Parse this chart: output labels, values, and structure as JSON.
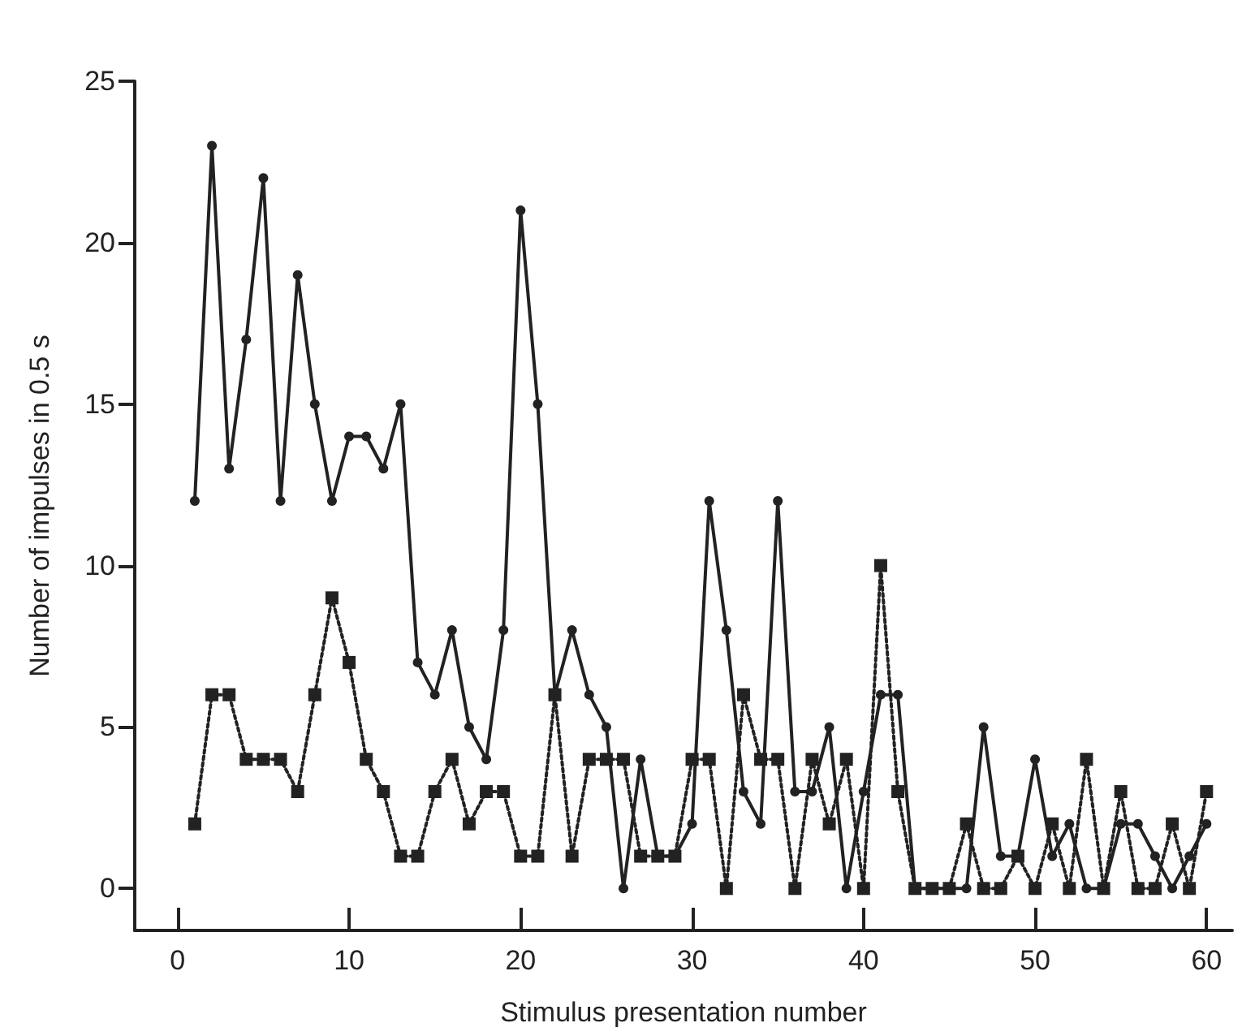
{
  "chart_data": {
    "type": "line",
    "xlabel": "Stimulus presentation number",
    "ylabel": "Number of impulses in 0.5 s",
    "x": [
      1,
      2,
      3,
      4,
      5,
      6,
      7,
      8,
      9,
      10,
      11,
      12,
      13,
      14,
      15,
      16,
      17,
      18,
      19,
      20,
      21,
      22,
      23,
      24,
      25,
      26,
      27,
      28,
      29,
      30,
      31,
      32,
      33,
      34,
      35,
      36,
      37,
      38,
      39,
      40,
      41,
      42,
      43,
      44,
      45,
      46,
      47,
      48,
      49,
      50,
      51,
      52,
      53,
      54,
      55,
      56,
      57,
      58,
      59,
      60
    ],
    "series": [
      {
        "color": "#222222",
        "marker": "circle",
        "line_style": "solid",
        "values": [
          12,
          23,
          13,
          17,
          22,
          12,
          19,
          15,
          12,
          14,
          14,
          13,
          15,
          7,
          6,
          8,
          5,
          4,
          8,
          21,
          15,
          6,
          8,
          6,
          5,
          0,
          4,
          1,
          1,
          2,
          12,
          8,
          3,
          2,
          12,
          3,
          3,
          5,
          0,
          3,
          6,
          6,
          0,
          0,
          0,
          0,
          5,
          1,
          1,
          4,
          1,
          2,
          0,
          0,
          2,
          2,
          1,
          0,
          1,
          2
        ]
      },
      {
        "color": "#222222",
        "marker": "square",
        "line_style": "dotted",
        "values": [
          2,
          6,
          6,
          4,
          4,
          4,
          3,
          6,
          9,
          7,
          4,
          3,
          1,
          1,
          3,
          4,
          2,
          3,
          3,
          1,
          1,
          6,
          1,
          4,
          4,
          4,
          1,
          1,
          1,
          4,
          4,
          0,
          6,
          4,
          4,
          0,
          4,
          2,
          4,
          0,
          10,
          3,
          0,
          0,
          0,
          2,
          0,
          0,
          1,
          0,
          2,
          0,
          4,
          0,
          3,
          0,
          0,
          2,
          0,
          3
        ]
      }
    ],
    "xlim": [
      -2.5,
      61.5
    ],
    "xticks": [
      0,
      10,
      20,
      30,
      40,
      50,
      60
    ],
    "ylim": [
      -1.3,
      25
    ],
    "yticks": [
      0,
      5,
      10,
      15,
      20,
      25
    ],
    "grid": false
  }
}
